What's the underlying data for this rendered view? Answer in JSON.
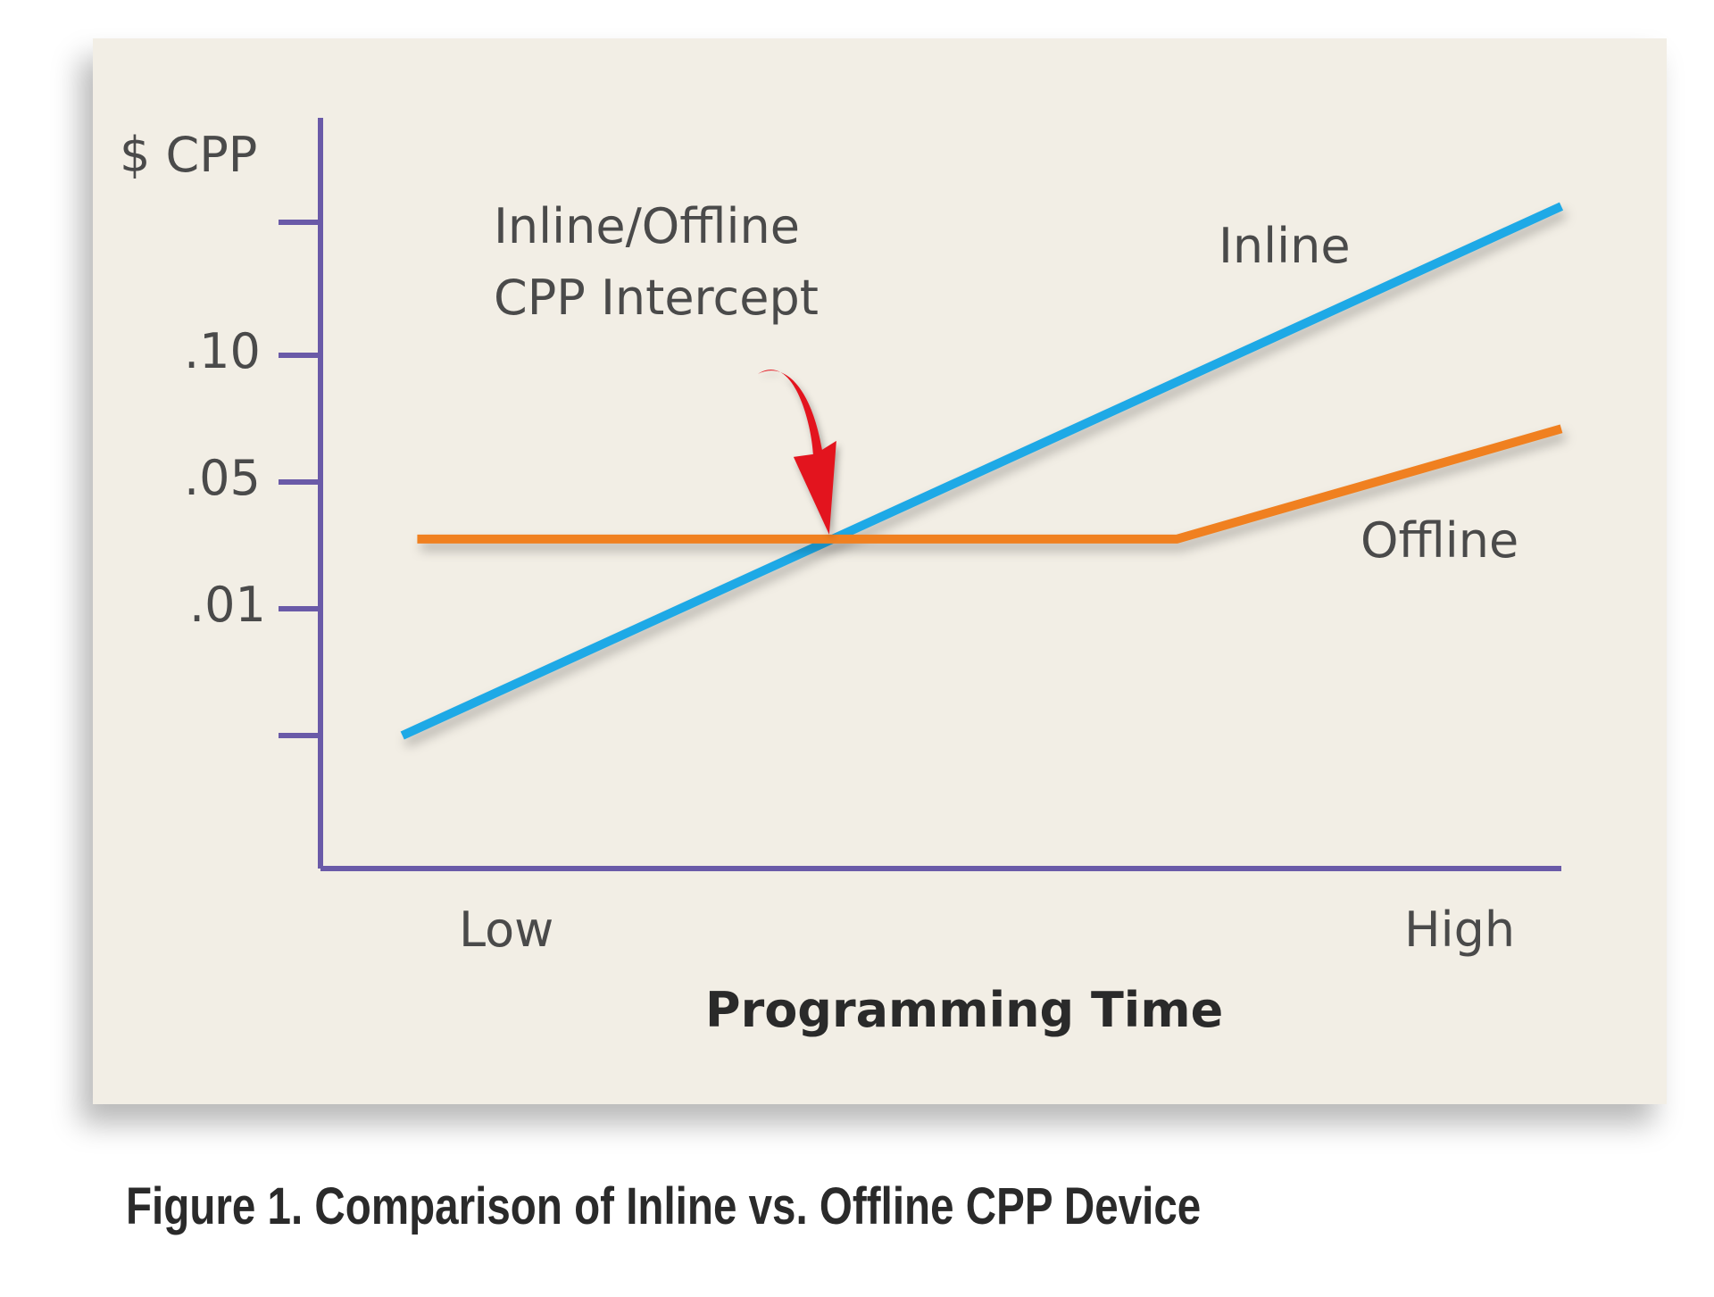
{
  "chart_data": {
    "type": "line",
    "title": "",
    "ylabel": "$ CPP",
    "xlabel": "Programming Time",
    "x_tick_labels": [
      "Low",
      "High"
    ],
    "y_tick_labels": [
      "",
      ".01",
      ".05",
      ".10",
      ""
    ],
    "ylim": [
      0,
      0.15
    ],
    "xlim": [
      0,
      1
    ],
    "grid": false,
    "series": [
      {
        "name": "Inline",
        "color": "#1ea9e6",
        "x": [
          0.066,
          1.0
        ],
        "y": [
          0.0,
          0.156
        ]
      },
      {
        "name": "Offline",
        "color": "#f08020",
        "x": [
          0.078,
          0.69,
          1.0
        ],
        "y": [
          0.032,
          0.032,
          0.071
        ]
      }
    ],
    "annotations": [
      {
        "text_lines": [
          "Inline/Offline",
          "CPP Intercept"
        ],
        "x": 0.41,
        "y": 0.032,
        "arrow_color": "#e3141e"
      }
    ],
    "axis_color": "#6a5aa8"
  },
  "caption": "Figure 1. Comparison of Inline vs. Offline CPP Device"
}
